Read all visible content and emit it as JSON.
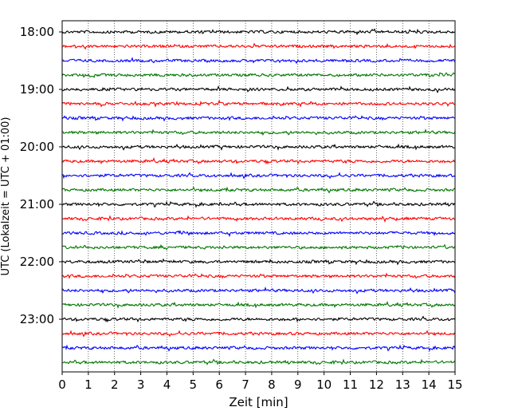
{
  "chart_data": {
    "type": "line",
    "title": "",
    "xlabel": "Zeit  [min]",
    "ylabel": "UTC (Lokalzeit = UTC + 01:00)",
    "xlim": [
      0,
      15
    ],
    "x_ticks": [
      0,
      1,
      2,
      3,
      4,
      5,
      6,
      7,
      8,
      9,
      10,
      11,
      12,
      13,
      14,
      15
    ],
    "y_tick_labels": [
      "18:00",
      "19:00",
      "20:00",
      "21:00",
      "22:00",
      "23:00"
    ],
    "grid": "vertical-dotted",
    "trace_interval_minutes": 15,
    "series": [
      {
        "start": "18:00",
        "color": "#000000"
      },
      {
        "start": "18:15",
        "color": "#ff0000"
      },
      {
        "start": "18:30",
        "color": "#0000ff"
      },
      {
        "start": "18:45",
        "color": "#007700"
      },
      {
        "start": "19:00",
        "color": "#000000"
      },
      {
        "start": "19:15",
        "color": "#ff0000"
      },
      {
        "start": "19:30",
        "color": "#0000ff"
      },
      {
        "start": "19:45",
        "color": "#007700"
      },
      {
        "start": "20:00",
        "color": "#000000"
      },
      {
        "start": "20:15",
        "color": "#ff0000"
      },
      {
        "start": "20:30",
        "color": "#0000ff"
      },
      {
        "start": "20:45",
        "color": "#007700"
      },
      {
        "start": "21:00",
        "color": "#000000"
      },
      {
        "start": "21:15",
        "color": "#ff0000"
      },
      {
        "start": "21:30",
        "color": "#0000ff"
      },
      {
        "start": "21:45",
        "color": "#007700"
      },
      {
        "start": "22:00",
        "color": "#000000"
      },
      {
        "start": "22:15",
        "color": "#ff0000"
      },
      {
        "start": "22:30",
        "color": "#0000ff"
      },
      {
        "start": "22:45",
        "color": "#007700"
      },
      {
        "start": "23:00",
        "color": "#000000"
      },
      {
        "start": "23:15",
        "color": "#ff0000"
      },
      {
        "start": "23:30",
        "color": "#0000ff"
      },
      {
        "start": "23:45",
        "color": "#007700"
      }
    ]
  }
}
